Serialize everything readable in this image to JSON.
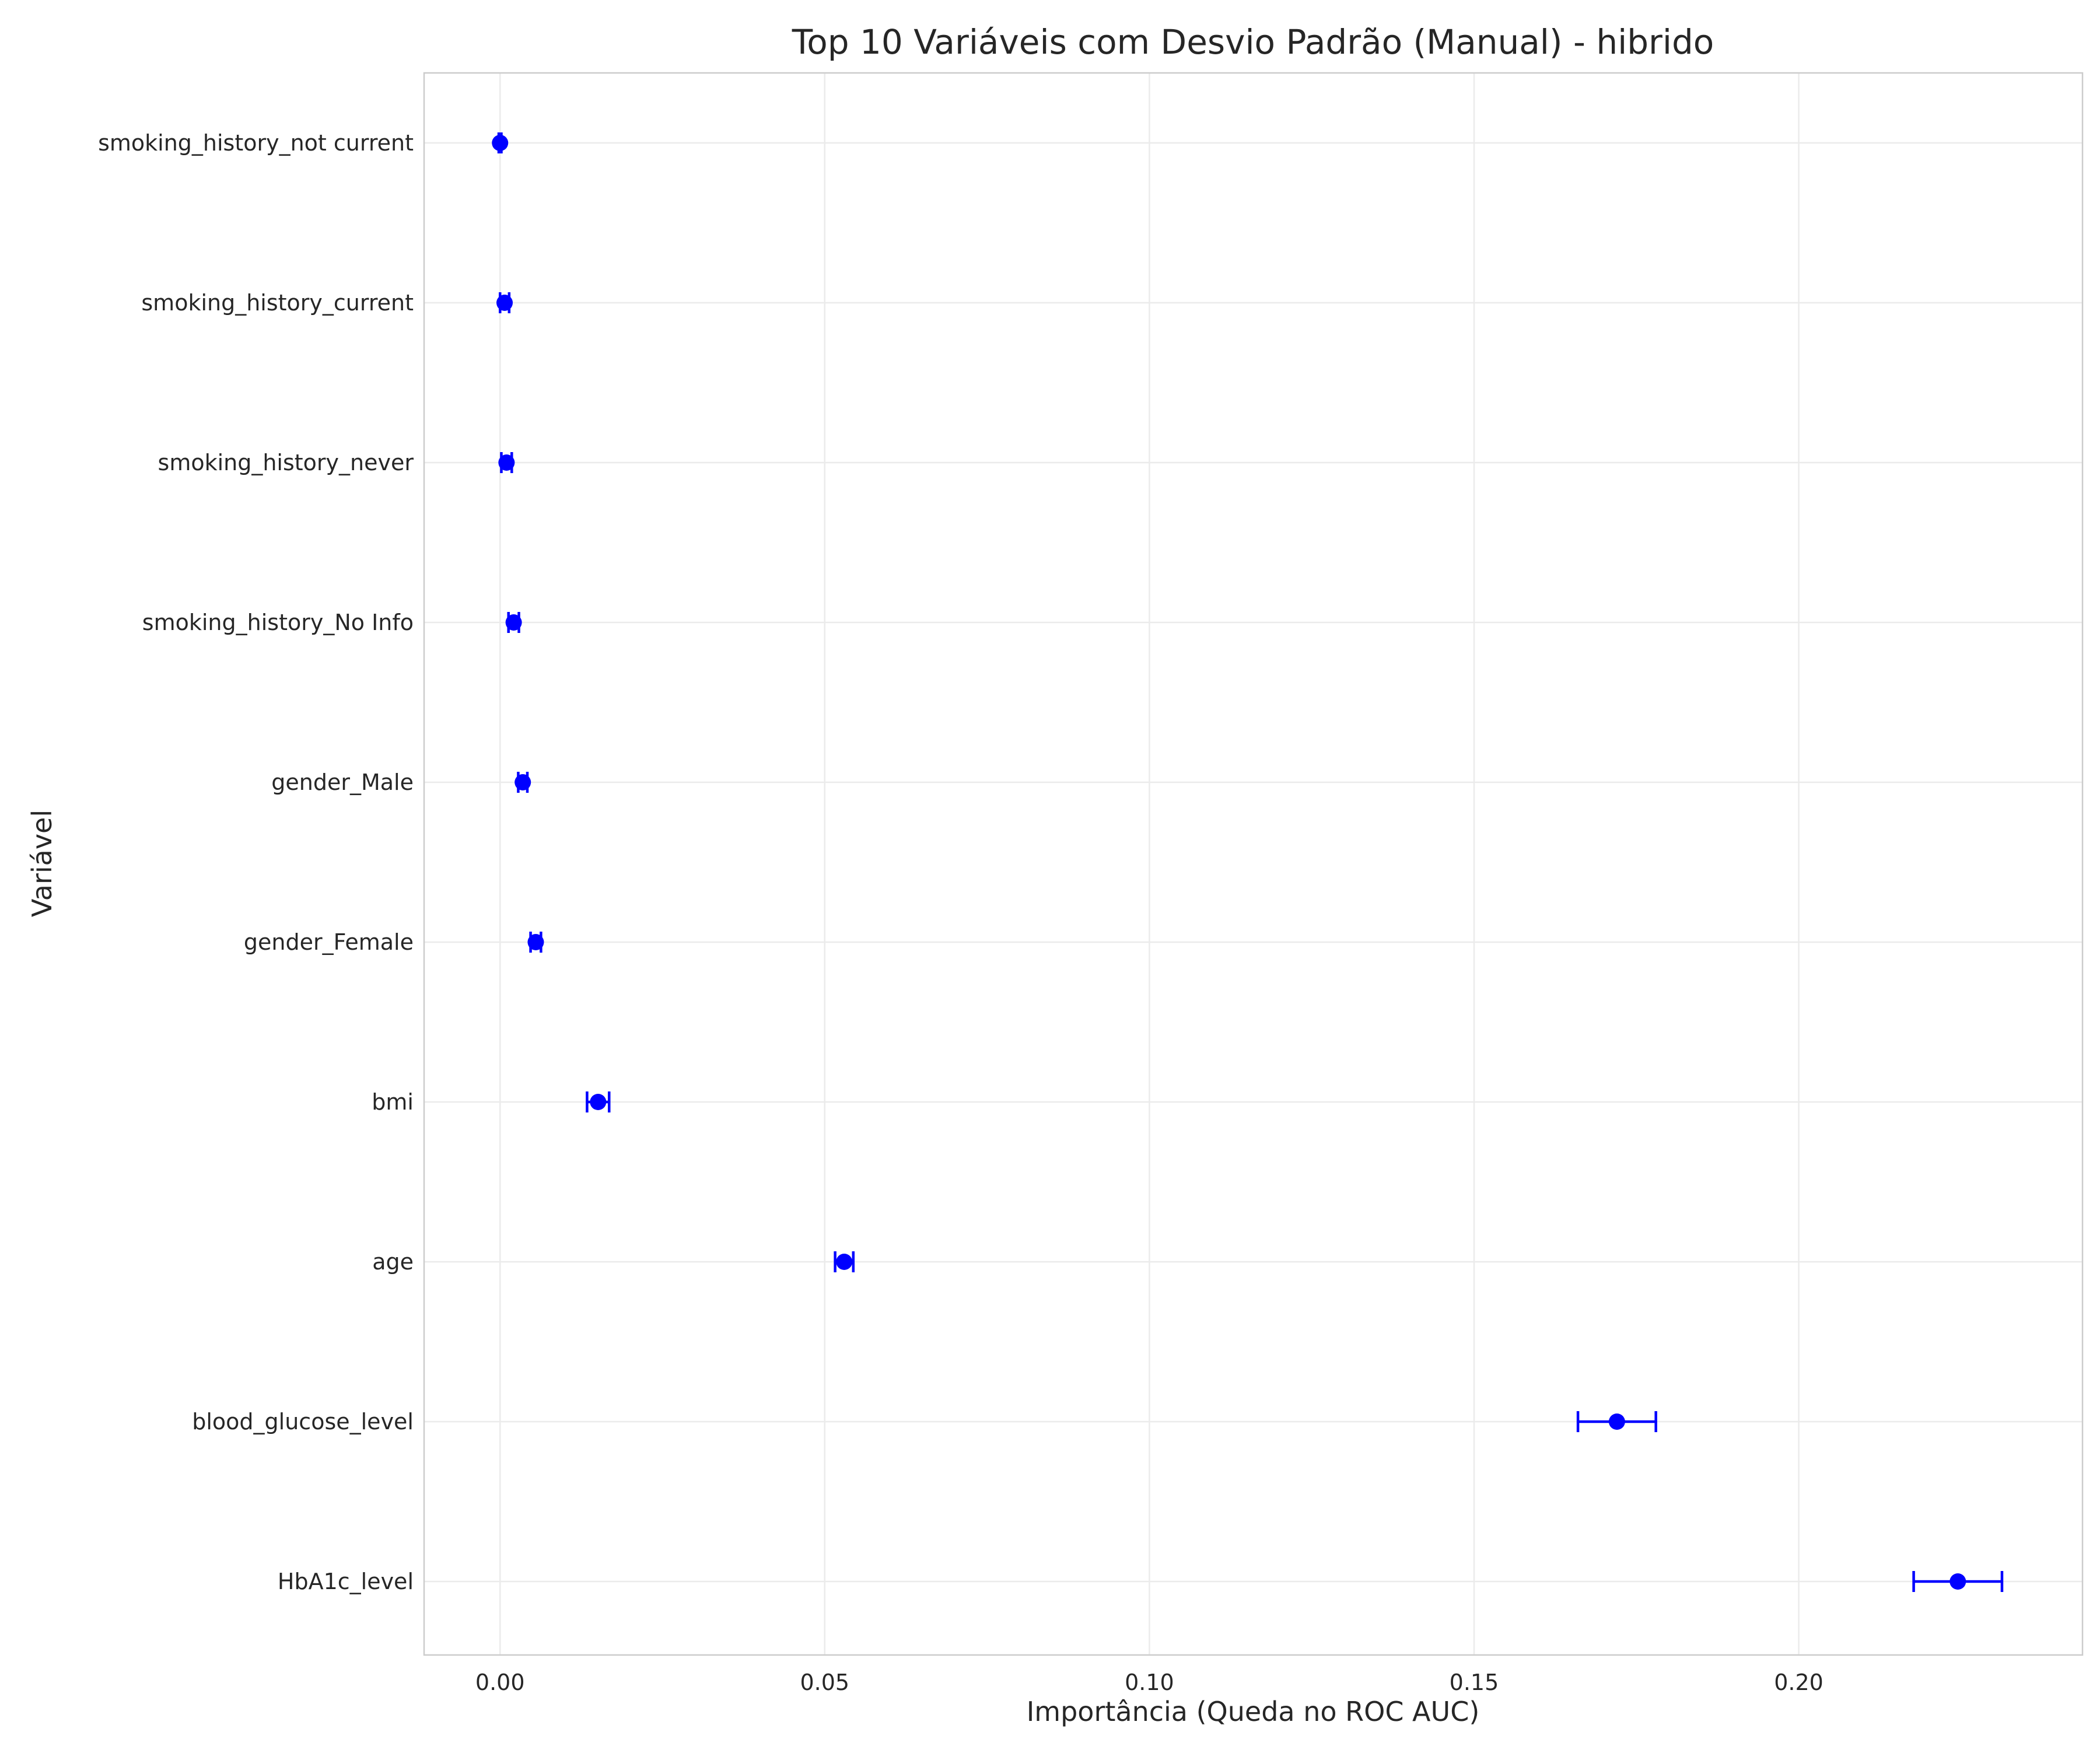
{
  "chart_data": {
    "type": "scatter",
    "title": "Top 10 Variáveis com Desvio Padrão (Manual) - hibrido",
    "xlabel": "Importância (Queda no ROC AUC)",
    "ylabel": "Variável",
    "xlim": [
      -0.0117,
      0.2437
    ],
    "xticks": [
      0.0,
      0.05,
      0.1,
      0.15,
      0.2
    ],
    "xtick_labels": [
      "0.00",
      "0.05",
      "0.10",
      "0.15",
      "0.20"
    ],
    "grid": true,
    "marker_color": "#0000ff",
    "categories": [
      "smoking_history_not current",
      "smoking_history_current",
      "smoking_history_never",
      "smoking_history_No Info",
      "gender_Male",
      "gender_Female",
      "bmi",
      "age",
      "blood_glucose_level",
      "HbA1c_level"
    ],
    "values": [
      0.0,
      0.0007,
      0.001,
      0.0021,
      0.0035,
      0.0055,
      0.0151,
      0.053,
      0.172,
      0.2245
    ],
    "errors": [
      0.0002,
      0.0007,
      0.0008,
      0.0008,
      0.0007,
      0.0008,
      0.0017,
      0.0014,
      0.006,
      0.0068
    ]
  }
}
